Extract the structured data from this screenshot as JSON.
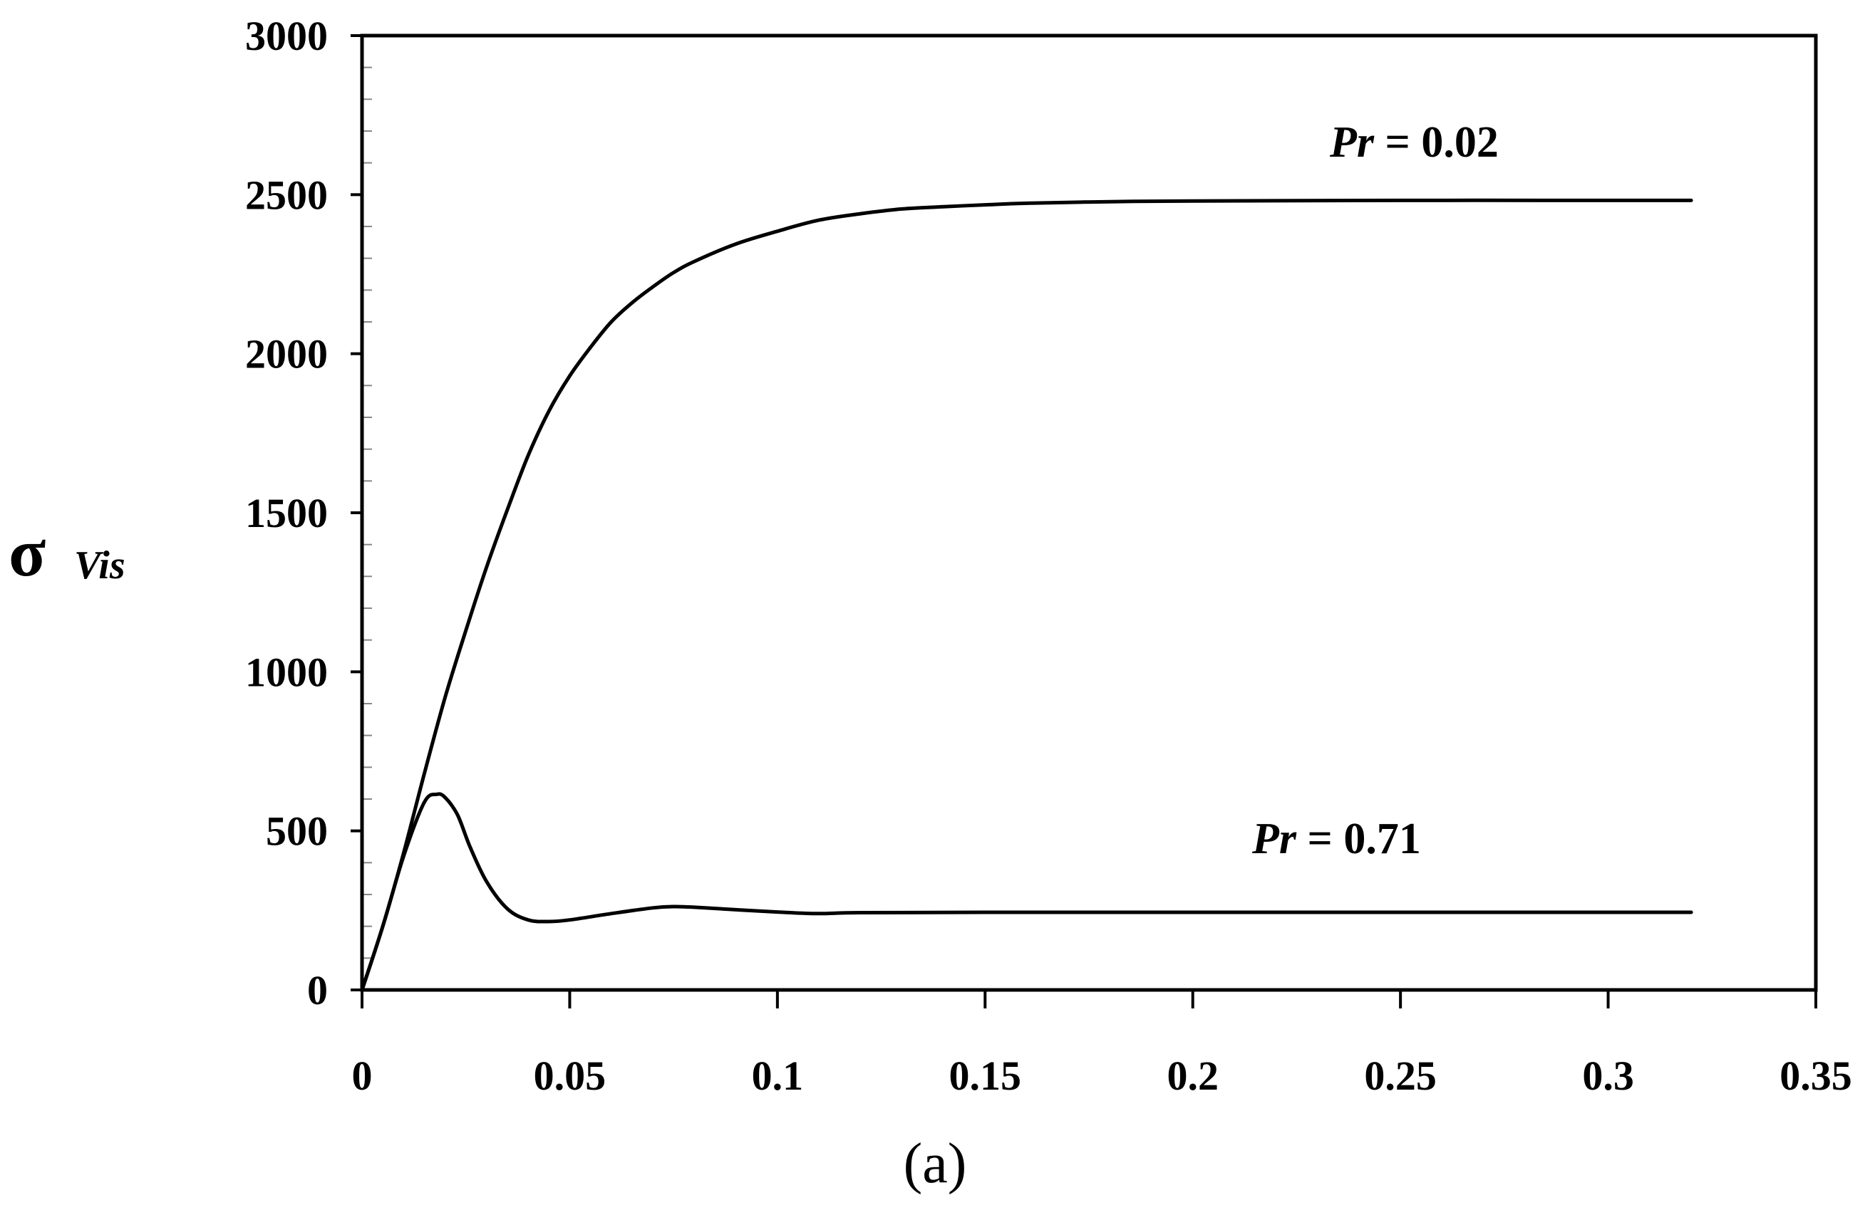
{
  "chart_data": {
    "type": "line",
    "title": "",
    "ylabel_symbol": "σ",
    "ylabel_subscript": "Vis",
    "xlabel": "",
    "caption": "(a)",
    "xlim": [
      0,
      0.35
    ],
    "ylim": [
      0,
      3000
    ],
    "x_ticks": [
      "0",
      "0.05",
      "0.1",
      "0.15",
      "0.2",
      "0.25",
      "0.3",
      "0.35"
    ],
    "y_ticks": [
      "0",
      "500",
      "1000",
      "1500",
      "2000",
      "2500",
      "3000"
    ],
    "grid": false,
    "series": [
      {
        "name": "Pr = 0.02",
        "label_prefix": "Pr",
        "label_suffix": " = 0.02",
        "color": "#000000",
        "x": [
          0,
          0.005,
          0.01,
          0.015,
          0.02,
          0.025,
          0.03,
          0.035,
          0.04,
          0.045,
          0.05,
          0.055,
          0.06,
          0.065,
          0.07,
          0.075,
          0.08,
          0.09,
          0.1,
          0.11,
          0.12,
          0.13,
          0.14,
          0.15,
          0.16,
          0.18,
          0.2,
          0.25,
          0.3,
          0.32
        ],
        "y": [
          0,
          200,
          430,
          680,
          920,
          1130,
          1330,
          1510,
          1680,
          1820,
          1930,
          2020,
          2100,
          2160,
          2210,
          2255,
          2290,
          2345,
          2385,
          2420,
          2440,
          2455,
          2462,
          2468,
          2473,
          2478,
          2480,
          2482,
          2482,
          2482
        ]
      },
      {
        "name": "Pr = 0.71",
        "label_prefix": "Pr",
        "label_suffix": " = 0.71",
        "color": "#000000",
        "x": [
          0,
          0.005,
          0.01,
          0.015,
          0.018,
          0.02,
          0.023,
          0.026,
          0.03,
          0.035,
          0.04,
          0.045,
          0.05,
          0.06,
          0.07,
          0.075,
          0.08,
          0.09,
          0.1,
          0.11,
          0.12,
          0.15,
          0.2,
          0.25,
          0.3,
          0.32
        ],
        "y": [
          0,
          200,
          420,
          590,
          615,
          605,
          550,
          450,
          340,
          255,
          220,
          215,
          220,
          240,
          258,
          262,
          260,
          252,
          245,
          240,
          243,
          244,
          244,
          244,
          244,
          244
        ]
      }
    ]
  }
}
